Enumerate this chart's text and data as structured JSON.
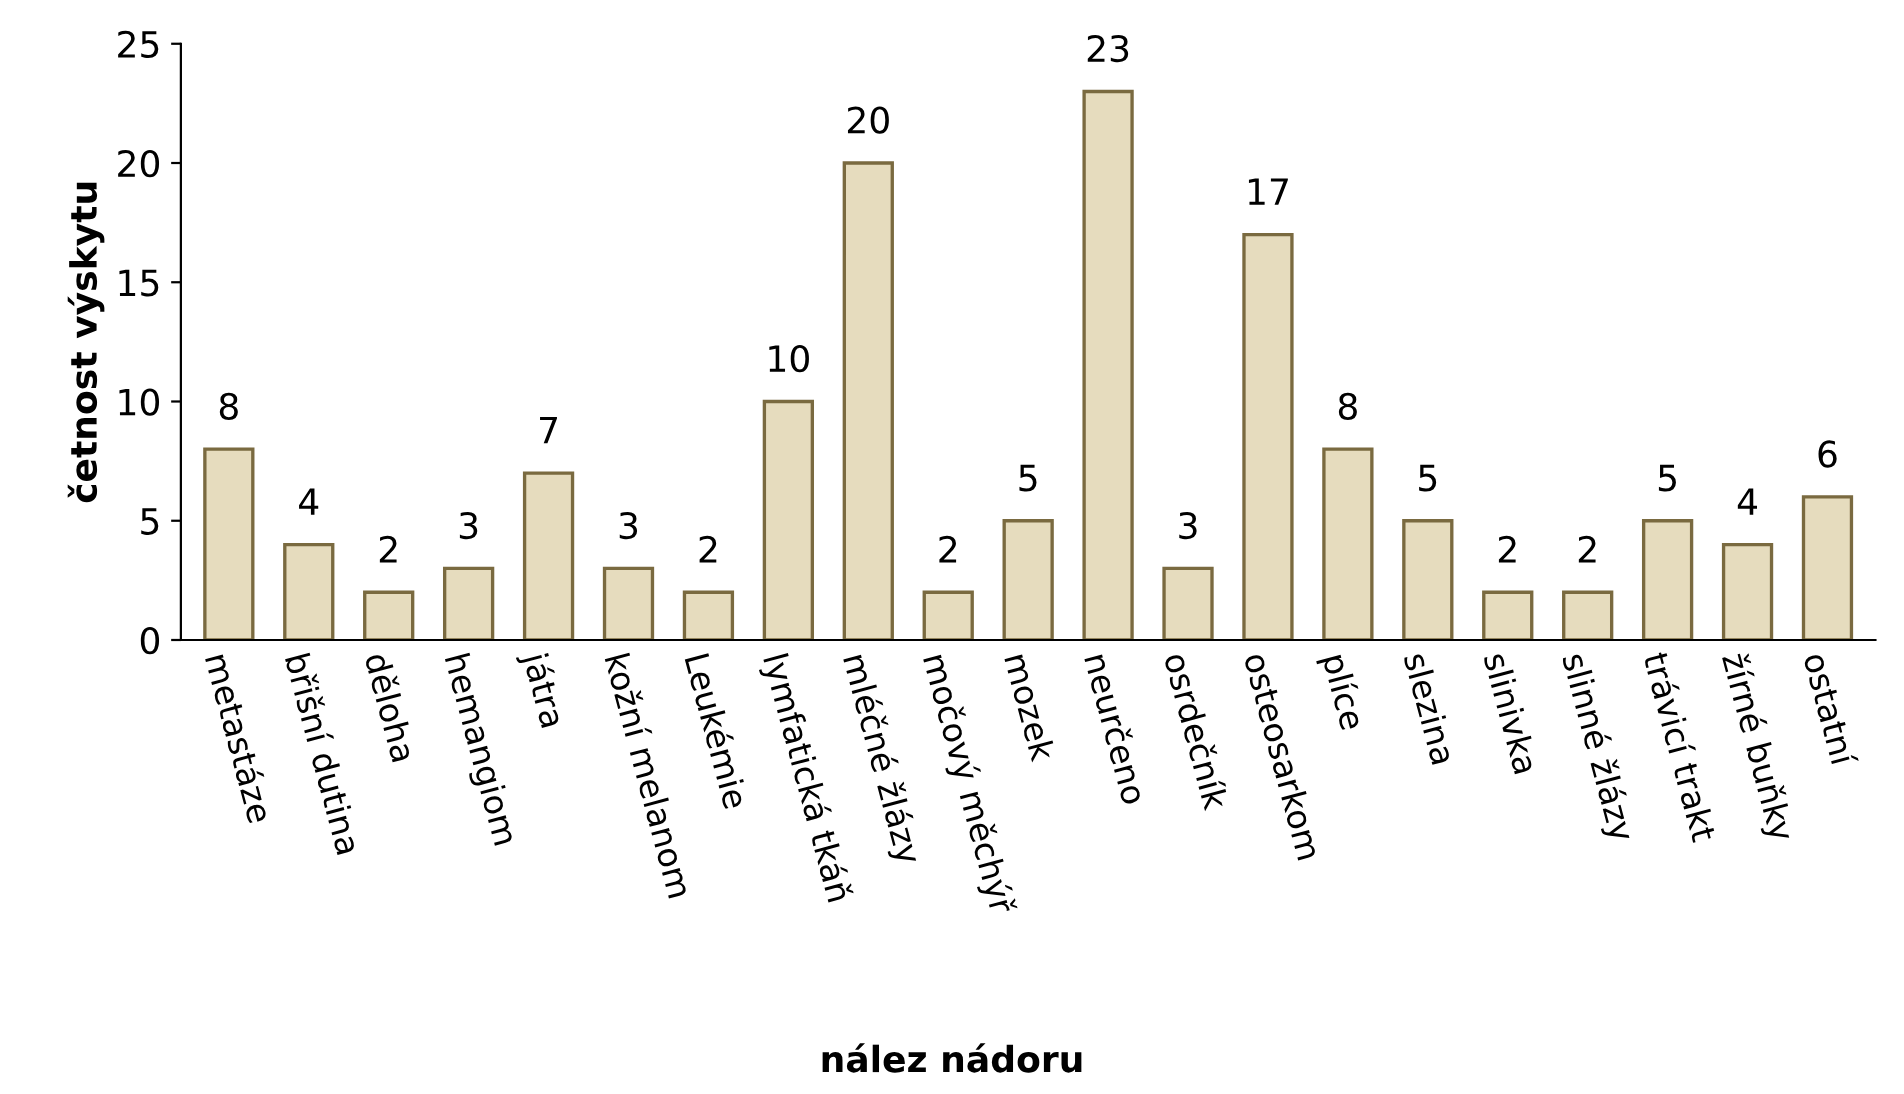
{
  "chart_data": {
    "type": "bar",
    "xlabel": "nález nádoru",
    "ylabel": "četnost výskytu",
    "categories": [
      "metastáze",
      "břišní dutina",
      "děloha",
      "hemangiom",
      "játra",
      "kožní melanom",
      "Leukémie",
      "lymfatická tkáň",
      "mléčné žlázy",
      "močový měchýř",
      "mozek",
      "neurčeno",
      "osrdečník",
      "osteosarkom",
      "plíce",
      "slezina",
      "slinivka",
      "slinné žlázy",
      "trávicí trakt",
      "žírné buňky",
      "ostatní"
    ],
    "values": [
      8,
      4,
      2,
      3,
      7,
      3,
      2,
      10,
      20,
      2,
      5,
      23,
      3,
      17,
      8,
      5,
      2,
      2,
      5,
      4,
      6
    ],
    "color": "#e6dcbe",
    "ylim": [
      0,
      25
    ],
    "yticks": [
      0,
      5,
      10,
      15,
      20,
      25
    ],
    "grid": false,
    "data_labels": true
  }
}
